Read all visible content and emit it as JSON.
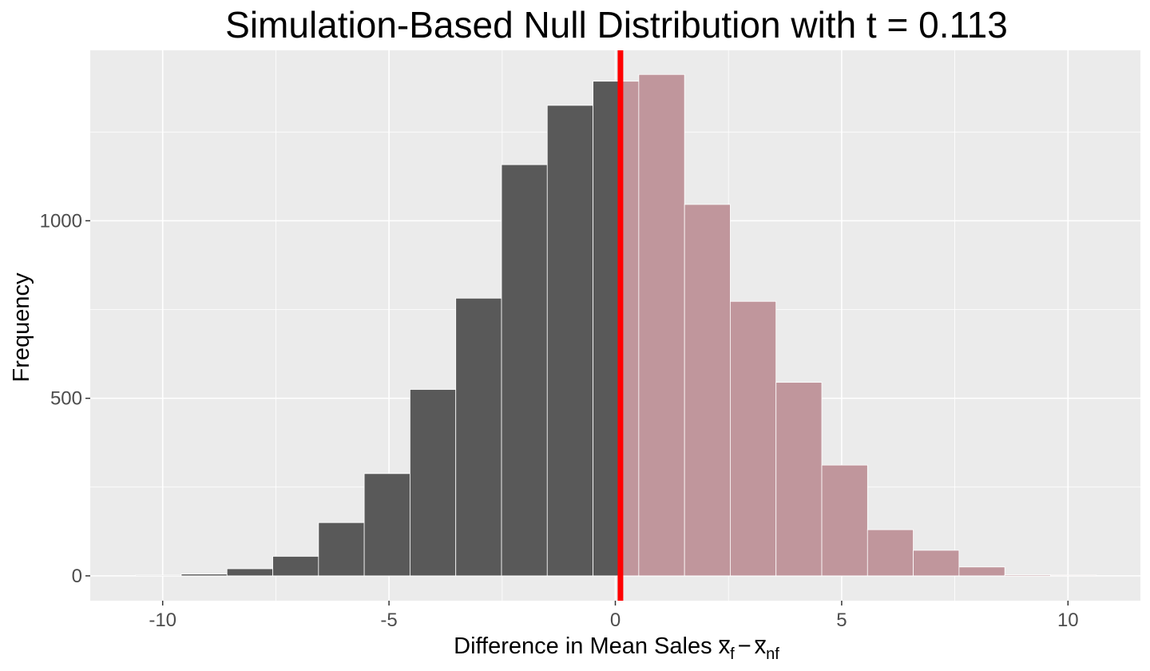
{
  "chart_data": {
    "type": "bar",
    "subtype": "histogram",
    "title": "Simulation-Based Null Distribution with t = 0.113",
    "xlabel_prefix": "Difference in Mean Sales ",
    "xlabel_math": {
      "term1": "x",
      "sub1": "f",
      "operator": "−",
      "term2": "x",
      "sub2": "nf"
    },
    "ylabel": "Frequency",
    "xlim": [
      -11.6,
      11.6
    ],
    "ylim": [
      -70,
      1480
    ],
    "x_ticks": [
      -10,
      -5,
      0,
      5,
      10
    ],
    "x_tick_labels": [
      "-10",
      "-5",
      "0",
      "5",
      "10"
    ],
    "y_ticks": [
      0,
      500,
      1000
    ],
    "y_tick_labels": [
      "0",
      "500",
      "1000"
    ],
    "y_minor_ticks": [
      250,
      750,
      1250
    ],
    "grid": true,
    "legend": "none",
    "bin_width": 1.0107,
    "bins": [
      {
        "x0": -10.6,
        "count": 2
      },
      {
        "x0": -9.589,
        "count": 5
      },
      {
        "x0": -8.579,
        "count": 20
      },
      {
        "x0": -7.568,
        "count": 55
      },
      {
        "x0": -6.557,
        "count": 150
      },
      {
        "x0": -5.547,
        "count": 288
      },
      {
        "x0": -4.536,
        "count": 525
      },
      {
        "x0": -3.525,
        "count": 782
      },
      {
        "x0": -2.514,
        "count": 1158
      },
      {
        "x0": -1.504,
        "count": 1325
      },
      {
        "x0": -0.493,
        "count": 1393
      },
      {
        "x0": 0.518,
        "count": 1412
      },
      {
        "x0": 1.529,
        "count": 1046
      },
      {
        "x0": 2.539,
        "count": 773
      },
      {
        "x0": 3.55,
        "count": 545
      },
      {
        "x0": 4.561,
        "count": 312
      },
      {
        "x0": 5.571,
        "count": 130
      },
      {
        "x0": 6.582,
        "count": 72
      },
      {
        "x0": 7.593,
        "count": 25
      },
      {
        "x0": 8.604,
        "count": 3
      },
      {
        "x0": 9.614,
        "count": 2
      }
    ],
    "observed_statistic": 0.113,
    "shade_direction": "right",
    "colors": {
      "panel_background": "#ebebeb",
      "grid": "#ffffff",
      "bar_fill": "#595959",
      "bar_outline": "#ffffff",
      "shade_fill": "#c0969c",
      "observed_line": "#ff0000"
    }
  }
}
